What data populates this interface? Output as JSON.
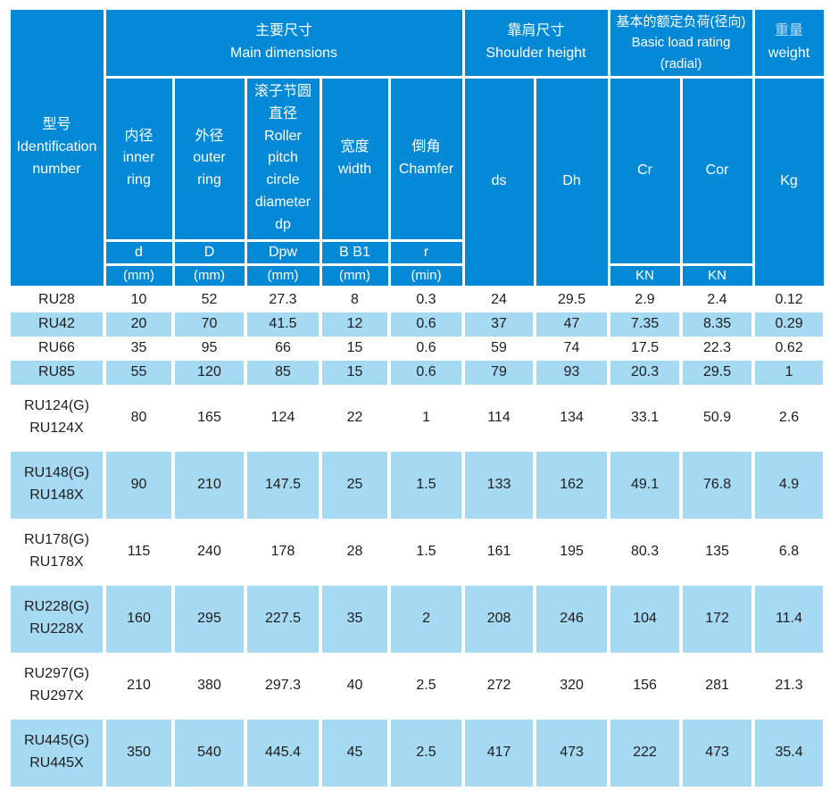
{
  "colors": {
    "header_blue": "#0489d6",
    "row_stripe": "#a6d9f2",
    "weight_zh_text": "#b6dcf0",
    "header_text": "#ffffff",
    "body_text": "#1d1d1d"
  },
  "header": {
    "identification": {
      "zh": "型号",
      "en": "Identification number"
    },
    "groups": {
      "main_dimensions": {
        "zh": "主要尺寸",
        "en": "Main dimensions"
      },
      "shoulder_height": {
        "zh": "靠肩尺寸",
        "en": "Shoulder height"
      },
      "basic_load_rating": {
        "zh": "基本的额定负荷(径向)",
        "en": "Basic load rating (radial)"
      },
      "weight": {
        "zh": "重量",
        "en": "weight"
      }
    },
    "columns": {
      "inner_ring": {
        "zh": "内径",
        "en": "inner\nring",
        "symbol": "d",
        "unit": "(mm)"
      },
      "outer_ring": {
        "zh": "外径",
        "en": "outer\nring",
        "symbol": "D",
        "unit": "(mm)"
      },
      "roller_pitch": {
        "zh": "滚子节圆直径",
        "en": "Roller\npitch\ncircle\ndiameter\ndp",
        "symbol": "Dpw",
        "unit": "(mm)"
      },
      "width": {
        "zh": "宽度",
        "en": "width",
        "symbol": "B B1",
        "unit": "(mm)"
      },
      "chamfer": {
        "zh": "倒角",
        "en": "Chamfer",
        "symbol": "r",
        "unit": "(min)"
      },
      "ds": {
        "label": "ds"
      },
      "dh": {
        "label": "Dh"
      },
      "cr": {
        "label": "Cr",
        "unit": "KN"
      },
      "cor": {
        "label": "Cor",
        "unit": "KN"
      },
      "kg": {
        "label": "Kg"
      }
    }
  },
  "rows": [
    {
      "model": "RU28",
      "values": [
        "10",
        "52",
        "27.3",
        "8",
        "0.3",
        "24",
        "29.5",
        "2.9",
        "2.4",
        "0.12"
      ]
    },
    {
      "model": "RU42",
      "values": [
        "20",
        "70",
        "41.5",
        "12",
        "0.6",
        "37",
        "47",
        "7.35",
        "8.35",
        "0.29"
      ]
    },
    {
      "model": "RU66",
      "values": [
        "35",
        "95",
        "66",
        "15",
        "0.6",
        "59",
        "74",
        "17.5",
        "22.3",
        "0.62"
      ]
    },
    {
      "model": "RU85",
      "values": [
        "55",
        "120",
        "85",
        "15",
        "0.6",
        "79",
        "93",
        "20.3",
        "29.5",
        "1"
      ]
    },
    {
      "model": "RU124(G)\nRU124X",
      "values": [
        "80",
        "165",
        "124",
        "22",
        "1",
        "114",
        "134",
        "33.1",
        "50.9",
        "2.6"
      ]
    },
    {
      "model": "RU148(G)\nRU148X",
      "values": [
        "90",
        "210",
        "147.5",
        "25",
        "1.5",
        "133",
        "162",
        "49.1",
        "76.8",
        "4.9"
      ]
    },
    {
      "model": "RU178(G)\nRU178X",
      "values": [
        "115",
        "240",
        "178",
        "28",
        "1.5",
        "161",
        "195",
        "80.3",
        "135",
        "6.8"
      ]
    },
    {
      "model": "RU228(G)\nRU228X",
      "values": [
        "160",
        "295",
        "227.5",
        "35",
        "2",
        "208",
        "246",
        "104",
        "172",
        "11.4"
      ]
    },
    {
      "model": "RU297(G)\nRU297X",
      "values": [
        "210",
        "380",
        "297.3",
        "40",
        "2.5",
        "272",
        "320",
        "156",
        "281",
        "21.3"
      ]
    },
    {
      "model": "RU445(G)\nRU445X",
      "values": [
        "350",
        "540",
        "445.4",
        "45",
        "2.5",
        "417",
        "473",
        "222",
        "473",
        "35.4"
      ]
    }
  ]
}
